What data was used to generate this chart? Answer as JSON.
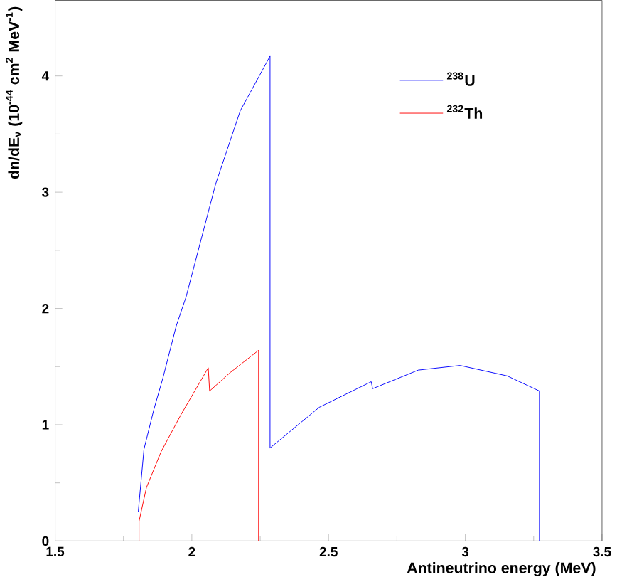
{
  "chart_data": {
    "type": "line",
    "xlabel": "Antineutrino energy (MeV)",
    "ylabel": "dn/dE$_{ν}$ (10$^{-44}$ cm$^{2}$ MeV$^{-1}$)",
    "xlim": [
      1.5,
      3.5
    ],
    "ylim": [
      0,
      4.65
    ],
    "xticks": [
      1.5,
      2,
      2.5,
      3,
      3.5
    ],
    "yticks": [
      0,
      1,
      2,
      3,
      4
    ],
    "grid": false,
    "legend": "top right",
    "line_style": "solid",
    "series": [
      {
        "name": "$^{238}$U",
        "color": "#0000ff",
        "x": [
          1.804,
          1.825,
          1.861,
          1.894,
          1.943,
          1.979,
          2.087,
          2.177,
          2.286,
          2.286,
          2.466,
          2.656,
          2.661,
          2.828,
          2.981,
          3.153,
          3.271,
          3.271
        ],
        "values": [
          0.25,
          0.79,
          1.13,
          1.4,
          1.85,
          2.1,
          3.07,
          3.7,
          4.17,
          0.8,
          1.15,
          1.37,
          1.31,
          1.47,
          1.51,
          1.42,
          1.29,
          0
        ]
      },
      {
        "name": "$^{232}$Th",
        "color": "#ff0000",
        "x": [
          1.807,
          1.807,
          1.834,
          1.888,
          1.961,
          2.06,
          2.065,
          2.141,
          2.244,
          2.244
        ],
        "values": [
          0,
          0.17,
          0.46,
          0.77,
          1.09,
          1.49,
          1.29,
          1.45,
          1.64,
          0
        ]
      }
    ]
  }
}
